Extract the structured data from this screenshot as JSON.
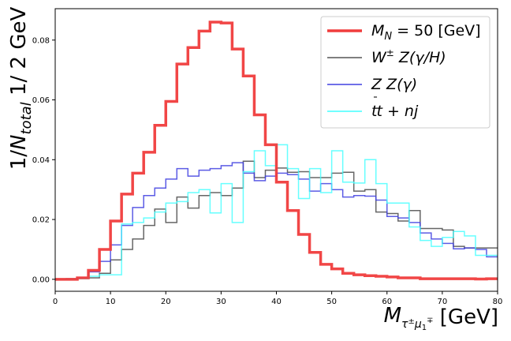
{
  "chart_data": {
    "type": "line",
    "xlabel": "M_{τ^± μ_1^∓} [GeV]",
    "ylabel": "1/N_{total} 1/ 2 GeV",
    "xlim": [
      0,
      80
    ],
    "ylim": [
      -0.004,
      0.0905
    ],
    "x_ticks": [
      0,
      10,
      20,
      30,
      40,
      50,
      60,
      70,
      80
    ],
    "y_ticks": [
      0.0,
      0.02,
      0.04,
      0.06,
      0.08
    ],
    "x_tick_labels": [
      "0",
      "10",
      "20",
      "30",
      "40",
      "50",
      "60",
      "70",
      "80"
    ],
    "y_tick_labels": [
      "0.00",
      "0.02",
      "0.04",
      "0.06",
      "0.08"
    ],
    "grid": false,
    "legend_position": "top-right",
    "bin_edges": [
      0,
      2,
      4,
      6,
      8,
      10,
      12,
      14,
      16,
      18,
      20,
      22,
      24,
      26,
      28,
      30,
      32,
      34,
      36,
      38,
      40,
      42,
      44,
      46,
      48,
      50,
      52,
      54,
      56,
      58,
      60,
      62,
      64,
      66,
      68,
      70,
      72,
      74,
      76,
      78,
      80
    ],
    "series": [
      {
        "name": "M_N = 50 [GeV]",
        "color": "#f03c3c",
        "values": [
          0.0,
          0.0,
          0.0005,
          0.003,
          0.01,
          0.0195,
          0.0285,
          0.0355,
          0.0425,
          0.0515,
          0.0595,
          0.072,
          0.0775,
          0.083,
          0.086,
          0.0857,
          0.077,
          0.068,
          0.055,
          0.045,
          0.0325,
          0.023,
          0.015,
          0.009,
          0.005,
          0.0035,
          0.002,
          0.0015,
          0.0012,
          0.001,
          0.0008,
          0.0005,
          0.0005,
          0.0002,
          0.0002,
          0.0002,
          0.0002,
          0.0002,
          0.0001,
          0.0002
        ]
      },
      {
        "name": "W^± Z(γ/H)",
        "color": "#555555",
        "values": [
          0.0,
          0.0002,
          0.0003,
          0.0005,
          0.002,
          0.0065,
          0.01,
          0.0135,
          0.018,
          0.0235,
          0.019,
          0.0275,
          0.0238,
          0.028,
          0.029,
          0.028,
          0.0305,
          0.0395,
          0.034,
          0.0365,
          0.0372,
          0.0358,
          0.036,
          0.034,
          0.034,
          0.0355,
          0.0358,
          0.0295,
          0.03,
          0.0225,
          0.022,
          0.0195,
          0.023,
          0.017,
          0.017,
          0.0165,
          0.011,
          0.0105,
          0.0105,
          0.0105
        ]
      },
      {
        "name": "Z Z(γ)",
        "color": "#4040e0",
        "values": [
          0.0,
          0.0001,
          0.0005,
          0.0025,
          0.006,
          0.0115,
          0.018,
          0.024,
          0.028,
          0.0305,
          0.0335,
          0.037,
          0.0345,
          0.0365,
          0.037,
          0.038,
          0.039,
          0.0355,
          0.033,
          0.0345,
          0.0355,
          0.035,
          0.0335,
          0.0295,
          0.032,
          0.03,
          0.0275,
          0.028,
          0.0278,
          0.0265,
          0.021,
          0.0205,
          0.019,
          0.0155,
          0.0135,
          0.012,
          0.0102,
          0.0105,
          0.01,
          0.0075
        ]
      },
      {
        "name": "t t̄ + nj",
        "color": "#40ffff",
        "values": [
          0.0,
          0.0,
          0.0002,
          0.001,
          0.0015,
          0.0015,
          0.0185,
          0.019,
          0.0205,
          0.0225,
          0.0255,
          0.026,
          0.029,
          0.03,
          0.0222,
          0.032,
          0.019,
          0.036,
          0.043,
          0.038,
          0.045,
          0.037,
          0.027,
          0.037,
          0.029,
          0.043,
          0.0325,
          0.0322,
          0.04,
          0.032,
          0.0255,
          0.0255,
          0.0175,
          0.013,
          0.011,
          0.014,
          0.016,
          0.0145,
          0.008,
          0.008
        ]
      }
    ]
  }
}
